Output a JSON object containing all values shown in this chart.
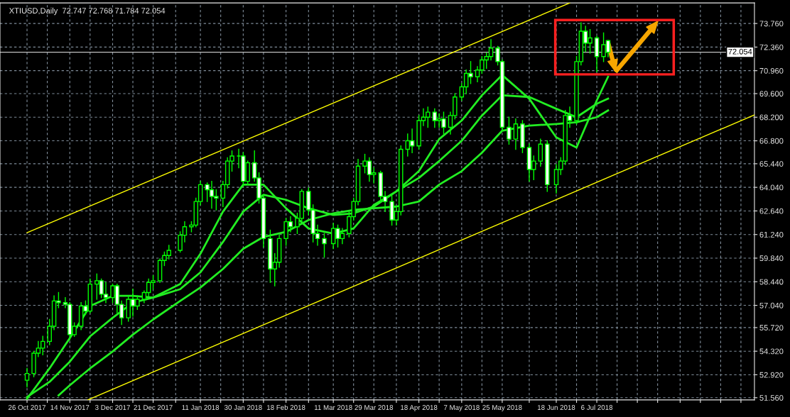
{
  "chart_data": {
    "type": "candlestick",
    "title": "XTIUSD,Daily  72.747 72.768 71.784 72.054",
    "color": "#00ff00",
    "grid": true,
    "x": [
      "2017-10-26",
      "2017-10-29",
      "2017-10-31",
      "2017-11-02",
      "2017-11-05",
      "2017-11-07",
      "2017-11-09",
      "2017-11-12",
      "2017-11-14",
      "2017-11-16",
      "2017-11-19",
      "2017-11-21",
      "2017-11-23",
      "2017-11-26",
      "2017-11-28",
      "2017-11-30",
      "2017-12-03",
      "2017-12-05",
      "2017-12-07",
      "2017-12-10",
      "2017-12-12",
      "2017-12-14",
      "2017-12-17",
      "2017-12-19",
      "2017-12-21",
      "2017-12-24",
      "2017-12-26",
      "2017-12-28",
      "2018-01-02",
      "2018-01-04",
      "2018-01-07",
      "2018-01-09",
      "2018-01-11",
      "2018-01-14",
      "2018-01-16",
      "2018-01-18",
      "2018-01-21",
      "2018-01-23",
      "2018-01-25",
      "2018-01-28",
      "2018-01-30",
      "2018-02-01",
      "2018-02-04",
      "2018-02-06",
      "2018-02-08",
      "2018-02-11",
      "2018-02-13",
      "2018-02-15",
      "2018-02-18",
      "2018-02-20",
      "2018-02-23",
      "2018-02-25",
      "2018-02-28",
      "2018-03-02",
      "2018-03-04",
      "2018-03-07",
      "2018-03-11",
      "2018-03-13",
      "2018-03-15",
      "2018-03-18",
      "2018-03-20",
      "2018-03-22",
      "2018-03-25",
      "2018-03-27",
      "2018-03-29",
      "2018-04-01",
      "2018-04-03",
      "2018-04-06",
      "2018-04-08",
      "2018-04-10",
      "2018-04-13",
      "2018-04-15",
      "2018-04-18",
      "2018-04-20",
      "2018-04-22",
      "2018-04-25",
      "2018-04-27",
      "2018-04-29",
      "2018-05-02",
      "2018-05-04",
      "2018-05-07",
      "2018-05-09",
      "2018-05-11",
      "2018-05-14",
      "2018-05-16",
      "2018-05-18",
      "2018-05-20",
      "2018-05-23",
      "2018-05-25",
      "2018-05-28",
      "2018-05-31",
      "2018-06-03",
      "2018-06-06",
      "2018-06-08",
      "2018-06-11",
      "2018-06-14",
      "2018-06-18",
      "2018-06-20",
      "2018-06-22",
      "2018-06-24",
      "2018-06-27",
      "2018-06-29",
      "2018-07-01",
      "2018-07-03",
      "2018-07-06",
      "2018-07-09",
      "2018-07-11"
    ],
    "ohlc": [
      [
        52.6,
        53.3,
        52.2,
        53.0
      ],
      [
        53.0,
        54.3,
        52.8,
        54.2
      ],
      [
        54.2,
        54.9,
        54.0,
        54.5
      ],
      [
        54.5,
        55.2,
        54.1,
        54.9
      ],
      [
        54.9,
        56.2,
        54.7,
        55.8
      ],
      [
        55.8,
        57.6,
        55.6,
        57.3
      ],
      [
        57.3,
        57.8,
        56.9,
        57.2
      ],
      [
        57.2,
        57.5,
        56.9,
        57.1
      ],
      [
        57.1,
        57.2,
        55.0,
        55.3
      ],
      [
        55.3,
        56.0,
        55.2,
        55.8
      ],
      [
        55.8,
        57.2,
        55.6,
        57.0
      ],
      [
        57.0,
        57.3,
        56.5,
        56.7
      ],
      [
        56.7,
        58.6,
        56.6,
        58.3
      ],
      [
        58.3,
        58.9,
        57.4,
        58.5
      ],
      [
        58.5,
        58.6,
        57.5,
        57.7
      ],
      [
        57.7,
        58.4,
        57.2,
        57.5
      ],
      [
        57.5,
        58.3,
        57.2,
        58.2
      ],
      [
        58.2,
        58.3,
        56.6,
        57.1
      ],
      [
        57.1,
        57.3,
        55.9,
        56.3
      ],
      [
        56.3,
        57.6,
        56.1,
        57.4
      ],
      [
        57.4,
        58.0,
        56.4,
        57.0
      ],
      [
        57.0,
        57.6,
        56.8,
        57.4
      ],
      [
        57.4,
        57.9,
        57.2,
        57.8
      ],
      [
        57.8,
        58.6,
        57.6,
        58.4
      ],
      [
        58.4,
        58.8,
        58.0,
        58.5
      ],
      [
        58.5,
        59.8,
        58.4,
        59.7
      ],
      [
        59.7,
        60.2,
        59.4,
        60.0
      ],
      [
        60.0,
        60.6,
        59.8,
        60.3
      ],
      [
        60.3,
        61.4,
        60.2,
        61.2
      ],
      [
        61.2,
        62.0,
        60.8,
        61.7
      ],
      [
        61.7,
        62.0,
        61.4,
        61.8
      ],
      [
        61.8,
        63.4,
        61.7,
        63.2
      ],
      [
        63.2,
        64.4,
        63.0,
        64.2
      ],
      [
        64.2,
        64.3,
        63.2,
        63.9
      ],
      [
        63.9,
        64.4,
        62.8,
        63.5
      ],
      [
        63.5,
        63.9,
        62.7,
        63.4
      ],
      [
        63.4,
        64.4,
        62.9,
        64.2
      ],
      [
        64.2,
        65.8,
        64.0,
        65.6
      ],
      [
        65.6,
        66.2,
        65.0,
        65.9
      ],
      [
        65.9,
        66.3,
        65.2,
        65.9
      ],
      [
        65.9,
        66.1,
        64.1,
        64.4
      ],
      [
        64.4,
        65.6,
        64.2,
        65.5
      ],
      [
        65.5,
        66.2,
        64.4,
        64.6
      ],
      [
        64.6,
        64.9,
        63.1,
        63.4
      ],
      [
        63.4,
        63.6,
        60.5,
        61.0
      ],
      [
        61.0,
        61.5,
        58.4,
        59.2
      ],
      [
        59.2,
        60.1,
        58.2,
        59.6
      ],
      [
        59.6,
        61.2,
        59.3,
        61.0
      ],
      [
        61.0,
        62.2,
        60.6,
        62.0
      ],
      [
        62.0,
        62.3,
        61.4,
        61.7
      ],
      [
        61.7,
        62.5,
        61.3,
        62.2
      ],
      [
        62.2,
        63.9,
        62.0,
        63.8
      ],
      [
        63.8,
        64.0,
        62.4,
        62.7
      ],
      [
        62.7,
        63.0,
        60.8,
        61.3
      ],
      [
        61.3,
        61.8,
        60.6,
        61.0
      ],
      [
        61.0,
        61.3,
        59.9,
        60.7
      ],
      [
        60.7,
        61.9,
        60.4,
        61.6
      ],
      [
        61.6,
        61.8,
        60.5,
        61.0
      ],
      [
        61.0,
        61.6,
        60.7,
        61.3
      ],
      [
        61.3,
        62.6,
        61.1,
        62.3
      ],
      [
        62.3,
        63.4,
        62.1,
        63.2
      ],
      [
        63.2,
        65.7,
        63.0,
        65.3
      ],
      [
        65.3,
        66.0,
        64.9,
        65.6
      ],
      [
        65.6,
        65.8,
        64.4,
        64.8
      ],
      [
        64.8,
        65.2,
        64.3,
        64.9
      ],
      [
        64.9,
        65.0,
        63.2,
        63.5
      ],
      [
        63.5,
        63.8,
        62.6,
        63.2
      ],
      [
        63.2,
        63.6,
        61.8,
        62.1
      ],
      [
        62.1,
        62.9,
        61.8,
        62.6
      ],
      [
        62.6,
        66.5,
        62.4,
        66.3
      ],
      [
        66.3,
        67.2,
        65.9,
        66.8
      ],
      [
        66.8,
        67.5,
        66.1,
        66.5
      ],
      [
        66.5,
        68.3,
        66.3,
        68.0
      ],
      [
        68.0,
        68.7,
        67.7,
        68.2
      ],
      [
        68.2,
        68.8,
        67.6,
        68.5
      ],
      [
        68.5,
        68.7,
        67.6,
        68.0
      ],
      [
        68.0,
        68.4,
        67.6,
        68.1
      ],
      [
        68.1,
        68.5,
        67.2,
        67.6
      ],
      [
        67.6,
        68.5,
        67.2,
        68.3
      ],
      [
        68.3,
        69.6,
        68.1,
        69.4
      ],
      [
        69.4,
        70.2,
        69.2,
        70.0
      ],
      [
        70.0,
        71.0,
        69.6,
        70.8
      ],
      [
        70.8,
        71.5,
        70.2,
        70.6
      ],
      [
        70.6,
        71.2,
        70.3,
        71.0
      ],
      [
        71.0,
        71.8,
        70.8,
        71.6
      ],
      [
        71.6,
        72.0,
        71.1,
        71.8
      ],
      [
        71.8,
        72.8,
        71.6,
        72.3
      ],
      [
        72.3,
        72.4,
        71.3,
        71.5
      ],
      [
        71.5,
        71.6,
        67.4,
        67.6
      ],
      [
        67.6,
        68.2,
        66.6,
        66.9
      ],
      [
        66.9,
        68.1,
        66.3,
        67.8
      ],
      [
        67.8,
        68.0,
        66.1,
        66.4
      ],
      [
        66.4,
        66.6,
        64.4,
        65.1
      ],
      [
        65.1,
        65.9,
        64.5,
        65.6
      ],
      [
        65.6,
        66.9,
        65.3,
        66.6
      ],
      [
        66.6,
        66.8,
        63.8,
        64.2
      ],
      [
        64.2,
        65.4,
        63.7,
        65.1
      ],
      [
        65.1,
        65.8,
        64.8,
        65.6
      ],
      [
        65.6,
        68.6,
        65.4,
        68.3
      ],
      [
        68.3,
        68.8,
        67.6,
        68.0
      ],
      [
        68.0,
        71.8,
        67.8,
        71.5
      ],
      [
        71.5,
        73.8,
        71.3,
        73.3
      ],
      [
        73.3,
        73.6,
        72.1,
        72.6
      ],
      [
        72.6,
        73.4,
        72.0,
        72.9
      ],
      [
        72.9,
        73.0,
        70.9,
        71.8
      ],
      [
        71.8,
        73.2,
        71.5,
        72.5
      ],
      [
        72.747,
        72.768,
        71.784,
        72.054
      ]
    ],
    "series": [
      {
        "type": "line",
        "color": "#22ee22",
        "x": [
          "2017-10-26",
          "2017-11-05",
          "2017-11-14",
          "2017-11-23",
          "2017-12-03",
          "2017-12-12",
          "2017-12-21",
          "2018-01-02",
          "2018-01-11",
          "2018-01-21",
          "2018-01-30",
          "2018-02-08",
          "2018-02-18",
          "2018-02-28",
          "2018-03-11",
          "2018-03-20",
          "2018-03-29",
          "2018-04-08",
          "2018-04-18",
          "2018-04-27",
          "2018-05-07",
          "2018-05-16",
          "2018-05-25",
          "2018-06-06",
          "2018-06-18",
          "2018-06-27",
          "2018-07-06",
          "2018-07-11"
        ],
        "values": [
          51.5,
          53.3,
          55.1,
          57.0,
          57.6,
          57.6,
          57.5,
          58.3,
          60.1,
          62.6,
          64.2,
          64.2,
          62.8,
          61.6,
          61.3,
          61.6,
          63.0,
          63.8,
          65.0,
          66.9,
          68.0,
          69.5,
          70.7,
          69.3,
          67.0,
          66.4,
          69.2,
          70.6
        ]
      },
      {
        "type": "line",
        "color": "#22ee22",
        "x": [
          "2017-10-26",
          "2017-11-05",
          "2017-11-14",
          "2017-11-23",
          "2017-12-03",
          "2017-12-12",
          "2017-12-21",
          "2018-01-02",
          "2018-01-11",
          "2018-01-21",
          "2018-01-30",
          "2018-02-08",
          "2018-02-18",
          "2018-02-28",
          "2018-03-11",
          "2018-03-20",
          "2018-03-29",
          "2018-04-08",
          "2018-04-18",
          "2018-04-27",
          "2018-05-07",
          "2018-05-16",
          "2018-05-25",
          "2018-06-06",
          "2018-06-18",
          "2018-06-27",
          "2018-07-06",
          "2018-07-11"
        ],
        "values": [
          51.6,
          52.5,
          53.7,
          55.2,
          56.3,
          57.2,
          57.5,
          58.0,
          59.0,
          60.8,
          62.6,
          63.6,
          63.3,
          62.8,
          62.4,
          62.5,
          62.9,
          63.8,
          64.6,
          65.6,
          66.8,
          68.3,
          69.5,
          69.4,
          68.7,
          68.2,
          69.0,
          69.3
        ]
      },
      {
        "type": "line",
        "color": "#22ee22",
        "x": [
          "2017-11-09",
          "2017-11-14",
          "2017-11-23",
          "2017-12-03",
          "2017-12-12",
          "2017-12-21",
          "2018-01-02",
          "2018-01-11",
          "2018-01-21",
          "2018-01-30",
          "2018-02-08",
          "2018-02-18",
          "2018-02-28",
          "2018-03-11",
          "2018-03-20",
          "2018-03-29",
          "2018-04-08",
          "2018-04-18",
          "2018-04-27",
          "2018-05-07",
          "2018-05-16",
          "2018-05-25",
          "2018-06-06",
          "2018-06-18",
          "2018-06-27",
          "2018-07-06",
          "2018-07-11"
        ],
        "values": [
          51.7,
          52.3,
          53.3,
          54.3,
          55.3,
          56.2,
          57.3,
          58.1,
          59.2,
          60.4,
          61.1,
          61.4,
          62.1,
          62.5,
          62.7,
          62.8,
          62.9,
          63.2,
          64.2,
          65.0,
          66.1,
          67.4,
          67.7,
          67.8,
          67.9,
          68.2,
          68.6
        ]
      },
      {
        "type": "line",
        "color": "#ffff00",
        "x": [
          "2017-10-26",
          "2018-06-24"
        ],
        "values": [
          61.35,
          74.98
        ]
      },
      {
        "type": "line",
        "color": "#ffff00",
        "x": [
          "2017-11-22",
          "2018-09-14"
        ],
        "values": [
          51.43,
          68.34
        ]
      }
    ],
    "ref_lines": [
      {
        "axis": "y",
        "value": 72.054,
        "label": "72.054",
        "color": "#c0c0c0"
      }
    ],
    "xlim": [
      "2017-10-14",
      "2018-09-14"
    ],
    "xticks": [
      {
        "value": "2017-10-26",
        "label": "26 Oct 2017"
      },
      {
        "value": "2017-11-04",
        "label": null
      },
      {
        "value": "2017-11-14",
        "label": "14 Nov 2017"
      },
      {
        "value": "2017-11-23",
        "label": null
      },
      {
        "value": "2017-12-03",
        "label": "3 Dec 2017"
      },
      {
        "value": "2017-12-12",
        "label": null
      },
      {
        "value": "2017-12-21",
        "label": "21 Dec 2017"
      },
      {
        "value": "2017-12-31",
        "label": null
      },
      {
        "value": "2018-01-11",
        "label": "11 Jan 2018"
      },
      {
        "value": "2018-01-20",
        "label": null
      },
      {
        "value": "2018-01-30",
        "label": "30 Jan 2018"
      },
      {
        "value": "2018-02-08",
        "label": null
      },
      {
        "value": "2018-02-18",
        "label": "18 Feb 2018"
      },
      {
        "value": "2018-02-28",
        "label": null
      },
      {
        "value": "2018-03-11",
        "label": "11 Mar 2018"
      },
      {
        "value": "2018-03-20",
        "label": null
      },
      {
        "value": "2018-03-29",
        "label": "29 Mar 2018"
      },
      {
        "value": "2018-04-08",
        "label": null
      },
      {
        "value": "2018-04-18",
        "label": "18 Apr 2018"
      },
      {
        "value": "2018-04-27",
        "label": null
      },
      {
        "value": "2018-05-07",
        "label": "7 May 2018"
      },
      {
        "value": "2018-05-16",
        "label": null
      },
      {
        "value": "2018-05-25",
        "label": "25 May 2018"
      },
      {
        "value": "2018-06-06",
        "label": null
      },
      {
        "value": "2018-06-18",
        "label": "18 Jun 2018"
      },
      {
        "value": "2018-06-27",
        "label": null
      },
      {
        "value": "2018-07-06",
        "label": "6 Jul 2018"
      },
      {
        "value": "2018-07-15",
        "label": null
      },
      {
        "value": "2018-07-24",
        "label": null
      },
      {
        "value": "2018-08-02",
        "label": null
      },
      {
        "value": "2018-08-12",
        "label": null
      },
      {
        "value": "2018-08-21",
        "label": null
      },
      {
        "value": "2018-08-30",
        "label": null
      },
      {
        "value": "2018-09-08",
        "label": null
      }
    ],
    "ylim": [
      51.43,
      74.98
    ],
    "yticks": [
      {
        "value": 51.56,
        "label": "51.560"
      },
      {
        "value": 52.92,
        "label": "52.920"
      },
      {
        "value": 54.32,
        "label": "54.320"
      },
      {
        "value": 55.72,
        "label": "55.720"
      },
      {
        "value": 57.04,
        "label": "57.040"
      },
      {
        "value": 58.44,
        "label": "58.440"
      },
      {
        "value": 59.84,
        "label": "59.840"
      },
      {
        "value": 61.24,
        "label": "61.240"
      },
      {
        "value": 62.64,
        "label": "62.640"
      },
      {
        "value": 64.04,
        "label": "64.040"
      },
      {
        "value": 65.44,
        "label": "65.440"
      },
      {
        "value": 66.8,
        "label": "66.800"
      },
      {
        "value": 68.2,
        "label": "68.200"
      },
      {
        "value": 69.6,
        "label": "69.600"
      },
      {
        "value": 70.96,
        "label": "70.960"
      },
      {
        "value": 72.36,
        "label": "72.360"
      },
      {
        "value": 73.76,
        "label": "73.760"
      }
    ]
  }
}
